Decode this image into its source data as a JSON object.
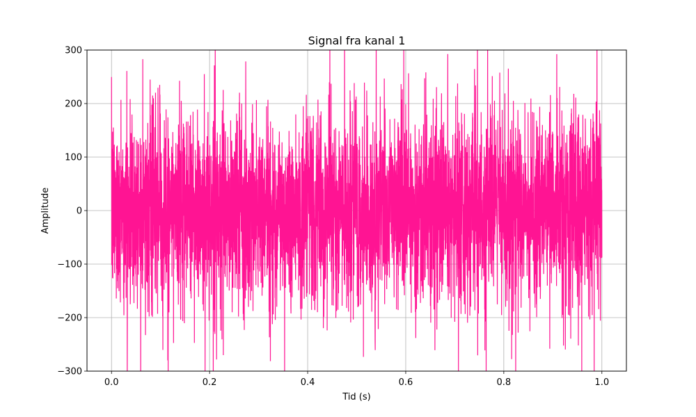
{
  "chart_data": {
    "type": "line",
    "title": "Signal fra kanal 1",
    "xlabel": "Tid (s)",
    "ylabel": "Amplitude",
    "xlim": [
      -0.05,
      1.05
    ],
    "ylim": [
      -300,
      300
    ],
    "xticks": [
      0.0,
      0.2,
      0.4,
      0.6,
      0.8,
      1.0
    ],
    "xtick_labels": [
      "0.0",
      "0.2",
      "0.4",
      "0.6",
      "0.8",
      "1.0"
    ],
    "yticks": [
      -300,
      -200,
      -100,
      0,
      100,
      200,
      300
    ],
    "ytick_labels": [
      "−300",
      "−200",
      "−100",
      "0",
      "100",
      "200",
      "300"
    ],
    "grid": true,
    "line_color": "#ff1493",
    "series": [
      {
        "x_range": [
          0.0,
          1.0
        ],
        "approx_std": 90,
        "typical_peak": 200,
        "max_peak": 300,
        "description_shape": "dense noise-like signal centered at 0"
      }
    ]
  }
}
